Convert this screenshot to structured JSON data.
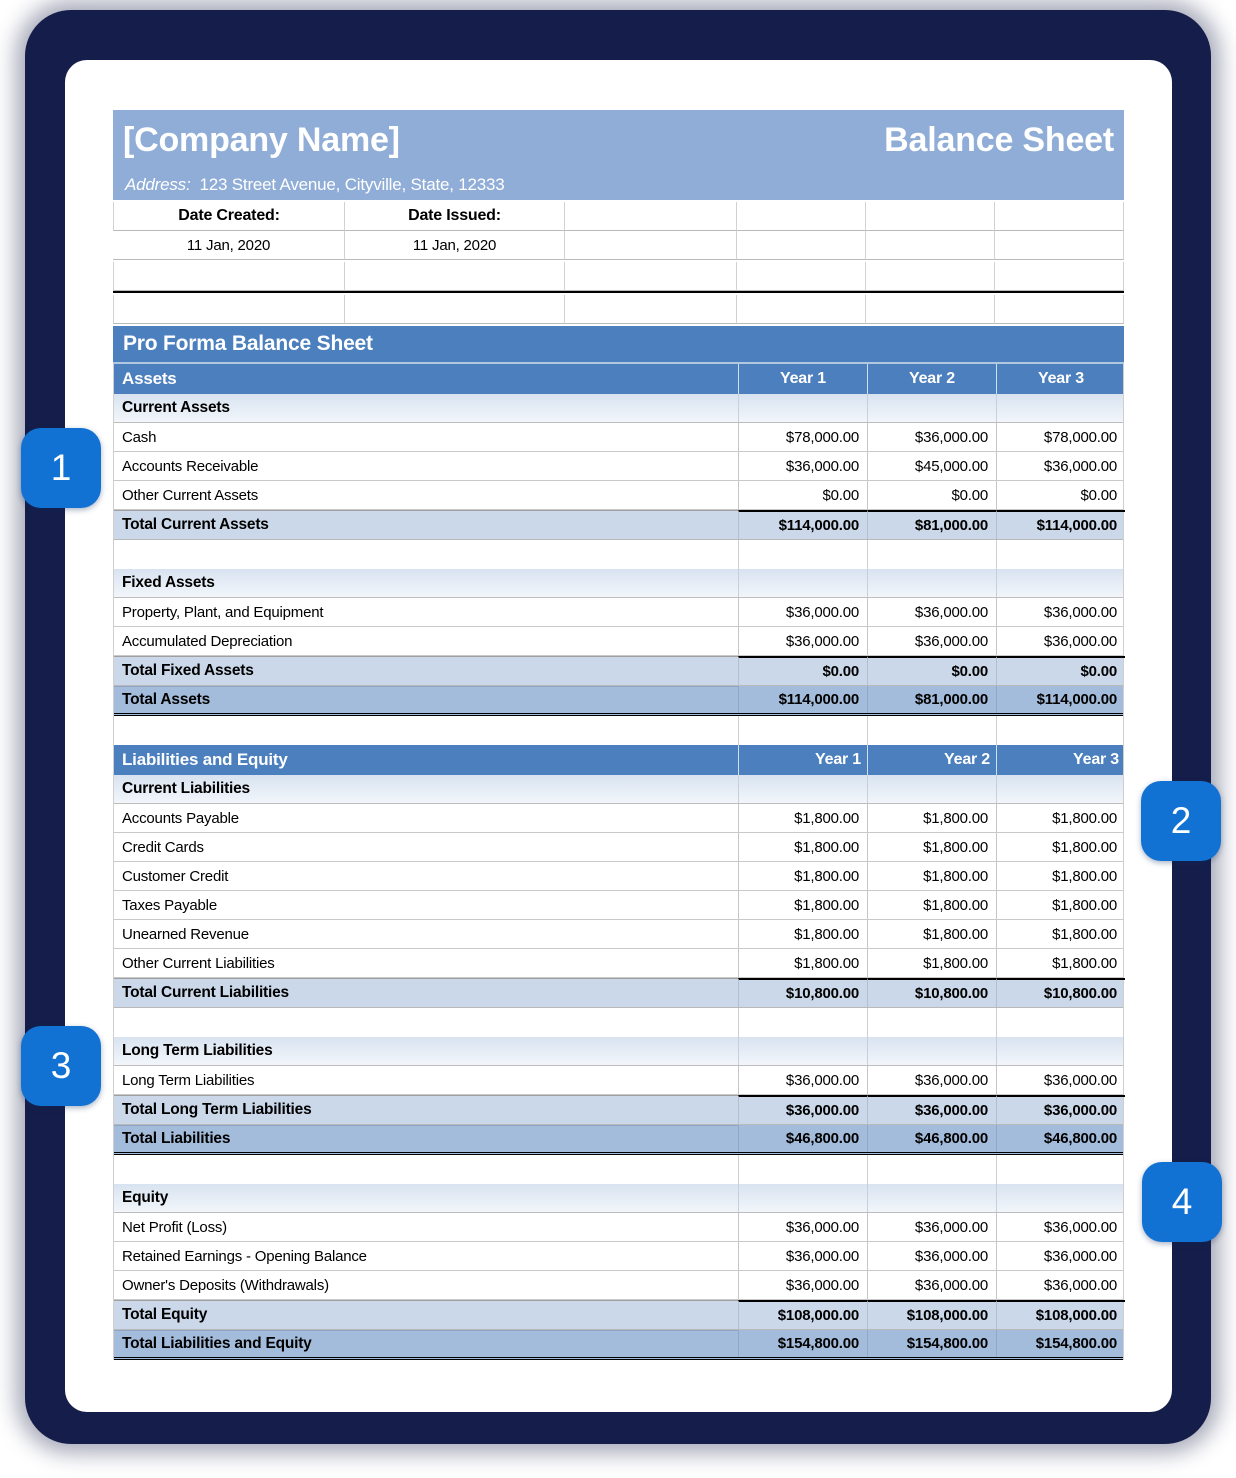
{
  "colors": {
    "accent_blue": "#4c7fbd",
    "banner_blue": "#8fadd6",
    "badge_blue": "#1172d4",
    "navy": "#151e4a",
    "total_bg": "#cbd8e9",
    "grand_bg": "#a4bcdb"
  },
  "badges": [
    {
      "label": "1"
    },
    {
      "label": "2"
    },
    {
      "label": "3"
    },
    {
      "label": "4"
    }
  ],
  "sheet": {
    "header": {
      "company_name": "[Company Name]",
      "document_title": "Balance Sheet",
      "address_label": "Address:",
      "address_value": "123 Street Avenue, Cityville, State, 12333"
    },
    "dates": {
      "created_label": "Date Created:",
      "issued_label": "Date Issued:",
      "created_value": "11 Jan, 2020",
      "issued_value": "11 Jan, 2020"
    },
    "section_title": "Pro Forma Balance Sheet",
    "tables": [
      {
        "header": {
          "label": "Assets",
          "years": [
            "Year 1",
            "Year 2",
            "Year 3"
          ],
          "year_align": "center"
        },
        "rows": [
          {
            "type": "subheader",
            "label": "Current Assets"
          },
          {
            "type": "item",
            "label": "Cash",
            "values": [
              "$78,000.00",
              "$36,000.00",
              "$78,000.00"
            ]
          },
          {
            "type": "item",
            "label": "Accounts Receivable",
            "values": [
              "$36,000.00",
              "$45,000.00",
              "$36,000.00"
            ]
          },
          {
            "type": "item",
            "label": "Other Current Assets",
            "values": [
              "$0.00",
              "$0.00",
              "$0.00"
            ]
          },
          {
            "type": "total",
            "label": "Total Current Assets",
            "values": [
              "$114,000.00",
              "$81,000.00",
              "$114,000.00"
            ]
          },
          {
            "type": "spacer"
          },
          {
            "type": "subheader",
            "label": "Fixed Assets"
          },
          {
            "type": "item",
            "label": "Property, Plant, and Equipment",
            "values": [
              "$36,000.00",
              "$36,000.00",
              "$36,000.00"
            ]
          },
          {
            "type": "item",
            "label": "Accumulated Depreciation",
            "values": [
              "$36,000.00",
              "$36,000.00",
              "$36,000.00"
            ]
          },
          {
            "type": "total",
            "label": "Total Fixed Assets",
            "values": [
              "$0.00",
              "$0.00",
              "$0.00"
            ]
          },
          {
            "type": "grandtotal",
            "label": "Total Assets",
            "values": [
              "$114,000.00",
              "$81,000.00",
              "$114,000.00"
            ]
          },
          {
            "type": "spacer"
          }
        ]
      },
      {
        "header": {
          "label": "Liabilities and Equity",
          "years": [
            "Year 1",
            "Year 2",
            "Year 3"
          ],
          "year_align": "right"
        },
        "rows": [
          {
            "type": "subheader",
            "label": "Current Liabilities"
          },
          {
            "type": "item",
            "label": "Accounts Payable",
            "values": [
              "$1,800.00",
              "$1,800.00",
              "$1,800.00"
            ]
          },
          {
            "type": "item",
            "label": "Credit Cards",
            "values": [
              "$1,800.00",
              "$1,800.00",
              "$1,800.00"
            ]
          },
          {
            "type": "item",
            "label": "Customer Credit",
            "values": [
              "$1,800.00",
              "$1,800.00",
              "$1,800.00"
            ]
          },
          {
            "type": "item",
            "label": "Taxes Payable",
            "values": [
              "$1,800.00",
              "$1,800.00",
              "$1,800.00"
            ]
          },
          {
            "type": "item",
            "label": "Unearned Revenue",
            "values": [
              "$1,800.00",
              "$1,800.00",
              "$1,800.00"
            ]
          },
          {
            "type": "item",
            "label": "Other Current Liabilities",
            "values": [
              "$1,800.00",
              "$1,800.00",
              "$1,800.00"
            ]
          },
          {
            "type": "total",
            "label": "Total Current Liabilities",
            "values": [
              "$10,800.00",
              "$10,800.00",
              "$10,800.00"
            ]
          },
          {
            "type": "spacer"
          },
          {
            "type": "subheader",
            "label": "Long Term Liabilities"
          },
          {
            "type": "item",
            "label": "Long Term Liabilities",
            "values": [
              "$36,000.00",
              "$36,000.00",
              "$36,000.00"
            ]
          },
          {
            "type": "total",
            "label": "Total Long Term Liabilities",
            "values": [
              "$36,000.00",
              "$36,000.00",
              "$36,000.00"
            ]
          },
          {
            "type": "grandtotal",
            "label": "Total Liabilities",
            "values": [
              "$46,800.00",
              "$46,800.00",
              "$46,800.00"
            ]
          },
          {
            "type": "spacer"
          },
          {
            "type": "subheader",
            "label": "Equity"
          },
          {
            "type": "item",
            "label": "Net Profit (Loss)",
            "values": [
              "$36,000.00",
              "$36,000.00",
              "$36,000.00"
            ]
          },
          {
            "type": "item",
            "label": "Retained Earnings - Opening Balance",
            "values": [
              "$36,000.00",
              "$36,000.00",
              "$36,000.00"
            ]
          },
          {
            "type": "item",
            "label": "Owner's Deposits (Withdrawals)",
            "values": [
              "$36,000.00",
              "$36,000.00",
              "$36,000.00"
            ]
          },
          {
            "type": "total",
            "label": "Total Equity",
            "values": [
              "$108,000.00",
              "$108,000.00",
              "$108,000.00"
            ]
          },
          {
            "type": "grandtotal",
            "label": "Total Liabilities and Equity",
            "values": [
              "$154,800.00",
              "$154,800.00",
              "$154,800.00"
            ]
          }
        ]
      }
    ]
  }
}
